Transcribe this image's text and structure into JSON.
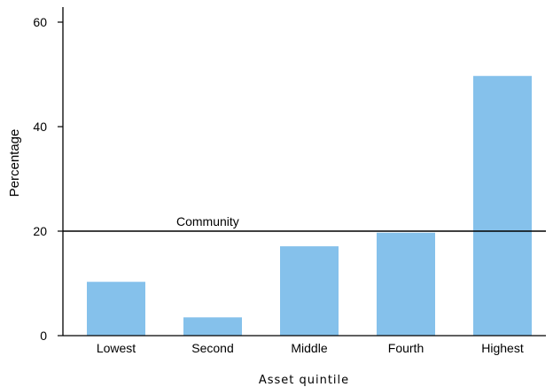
{
  "chart_data": {
    "type": "bar",
    "categories": [
      "Lowest",
      "Second",
      "Middle",
      "Fourth",
      "Highest"
    ],
    "values": [
      10.3,
      3.5,
      17.1,
      19.7,
      49.7
    ],
    "xlabel": "Asset quintile",
    "ylabel": "Percentage",
    "ylim": [
      0,
      60
    ],
    "yticks": [
      0,
      20,
      40,
      60
    ],
    "bar_color": "#85c1eb",
    "grid": false,
    "reference_line": {
      "label": "Community",
      "value": 20
    }
  }
}
